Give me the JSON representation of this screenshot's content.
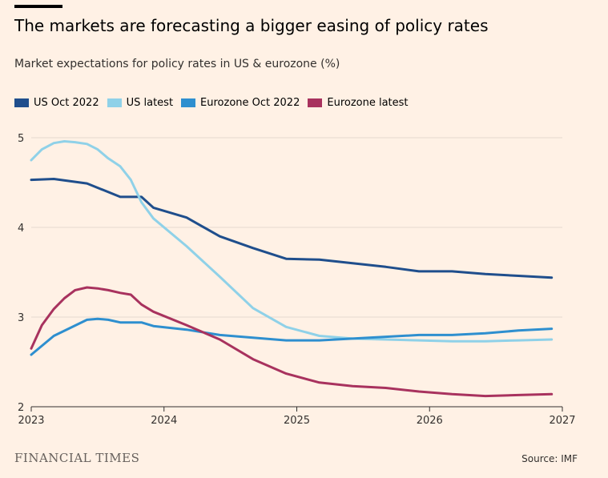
{
  "header": {
    "title": "The markets are forecasting a bigger easing of policy rates",
    "subtitle": "Market expectations for policy rates in US & eurozone (%)"
  },
  "footer": {
    "brand": "FINANCIAL TIMES",
    "source": "Source: IMF"
  },
  "colors": {
    "background": "#fff1e5",
    "grid": "#e6d9ce",
    "axis": "#33302e"
  },
  "chart_data": {
    "type": "line",
    "title": "The markets are forecasting a bigger easing of policy rates",
    "subtitle": "Market expectations for policy rates in US & eurozone (%)",
    "xlabel": "",
    "ylabel": "",
    "xlim": [
      2023,
      2027
    ],
    "ylim": [
      2,
      5
    ],
    "x_ticks": [
      2023,
      2024,
      2025,
      2026,
      2027
    ],
    "x_tick_labels": [
      "2023",
      "2024",
      "2025",
      "2026",
      "2027"
    ],
    "y_ticks": [
      2,
      3,
      4,
      5
    ],
    "y_tick_labels": [
      "2",
      "3",
      "4",
      "5"
    ],
    "grid": true,
    "legend_position": "top-left",
    "series": [
      {
        "name": "US Oct 2022",
        "color": "#1f4e8c",
        "x": [
          2023.0,
          2023.17,
          2023.42,
          2023.67,
          2023.83,
          2023.92,
          2024.17,
          2024.42,
          2024.67,
          2024.92,
          2025.17,
          2025.42,
          2025.67,
          2025.92,
          2026.17,
          2026.42,
          2026.67,
          2026.92
        ],
        "y": [
          4.53,
          4.54,
          4.49,
          4.34,
          4.34,
          4.22,
          4.11,
          3.9,
          3.77,
          3.65,
          3.64,
          3.6,
          3.56,
          3.51,
          3.51,
          3.48,
          3.46,
          3.44
        ]
      },
      {
        "name": "US latest",
        "color": "#8fd1e8",
        "x": [
          2023.0,
          2023.08,
          2023.17,
          2023.25,
          2023.33,
          2023.42,
          2023.5,
          2023.58,
          2023.67,
          2023.75,
          2023.83,
          2023.92,
          2024.17,
          2024.42,
          2024.67,
          2024.92,
          2025.17,
          2025.42,
          2025.67,
          2025.92,
          2026.17,
          2026.42,
          2026.67,
          2026.92
        ],
        "y": [
          4.75,
          4.87,
          4.94,
          4.96,
          4.95,
          4.93,
          4.87,
          4.77,
          4.68,
          4.53,
          4.28,
          4.1,
          3.79,
          3.45,
          3.1,
          2.89,
          2.79,
          2.76,
          2.75,
          2.74,
          2.73,
          2.73,
          2.74,
          2.75
        ]
      },
      {
        "name": "Eurozone Oct 2022",
        "color": "#2e8fcf",
        "x": [
          2023.0,
          2023.17,
          2023.42,
          2023.5,
          2023.58,
          2023.67,
          2023.83,
          2023.92,
          2024.17,
          2024.42,
          2024.67,
          2024.92,
          2025.17,
          2025.42,
          2025.67,
          2025.92,
          2026.17,
          2026.42,
          2026.67,
          2026.92
        ],
        "y": [
          2.58,
          2.79,
          2.97,
          2.98,
          2.97,
          2.94,
          2.94,
          2.9,
          2.86,
          2.8,
          2.77,
          2.74,
          2.74,
          2.76,
          2.78,
          2.8,
          2.8,
          2.82,
          2.85,
          2.87
        ]
      },
      {
        "name": "Eurozone latest",
        "color": "#a8325e",
        "x": [
          2023.0,
          2023.08,
          2023.17,
          2023.25,
          2023.33,
          2023.42,
          2023.5,
          2023.58,
          2023.67,
          2023.75,
          2023.83,
          2023.92,
          2024.17,
          2024.42,
          2024.67,
          2024.92,
          2025.17,
          2025.42,
          2025.67,
          2025.92,
          2026.17,
          2026.42,
          2026.67,
          2026.92
        ],
        "y": [
          2.65,
          2.91,
          3.09,
          3.21,
          3.3,
          3.33,
          3.32,
          3.3,
          3.27,
          3.25,
          3.14,
          3.06,
          2.91,
          2.75,
          2.53,
          2.37,
          2.27,
          2.23,
          2.21,
          2.17,
          2.14,
          2.12,
          2.13,
          2.14
        ]
      }
    ]
  }
}
